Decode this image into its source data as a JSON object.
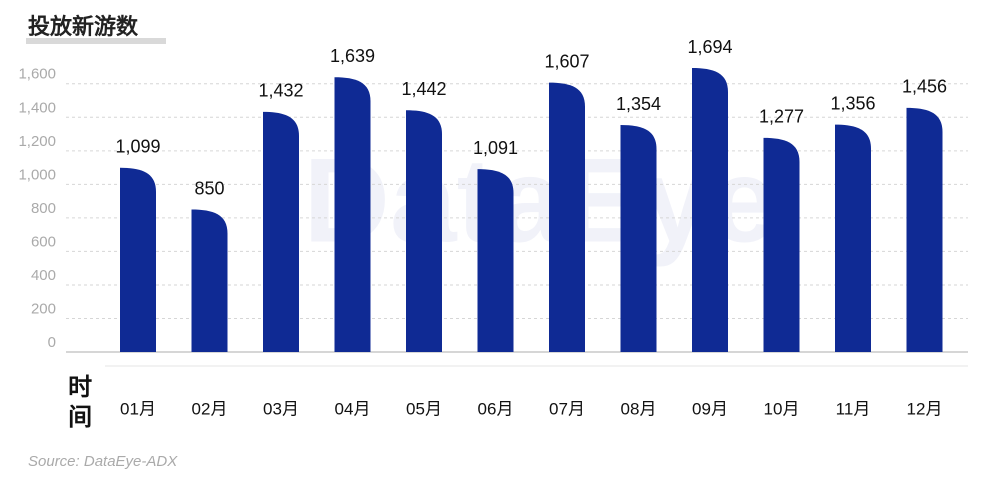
{
  "chart_data": {
    "type": "bar",
    "title": "投放新游数",
    "xlabel": "时间",
    "source": "Source: DataEye-ADX",
    "watermark": "DataEye",
    "categories": [
      "01月",
      "02月",
      "03月",
      "04月",
      "05月",
      "06月",
      "07月",
      "08月",
      "09月",
      "10月",
      "11月",
      "12月"
    ],
    "values": [
      1099,
      850,
      1432,
      1639,
      1442,
      1091,
      1607,
      1354,
      1694,
      1277,
      1356,
      1456
    ],
    "value_labels": [
      "1,099",
      "850",
      "1,432",
      "1,639",
      "1,442",
      "1,091",
      "1,607",
      "1,354",
      "1,694",
      "1,277",
      "1,356",
      "1,456"
    ],
    "color": "#0f2a94",
    "ylim": [
      0,
      1700
    ],
    "yticks": [
      0,
      200,
      400,
      600,
      800,
      {
        "value": 1000,
        "label": "1,000"
      },
      {
        "value": 1200,
        "label": "1,200"
      },
      {
        "value": 1400,
        "label": "1,400"
      },
      {
        "value": 1600,
        "label": "1,600"
      }
    ],
    "grid": true
  }
}
